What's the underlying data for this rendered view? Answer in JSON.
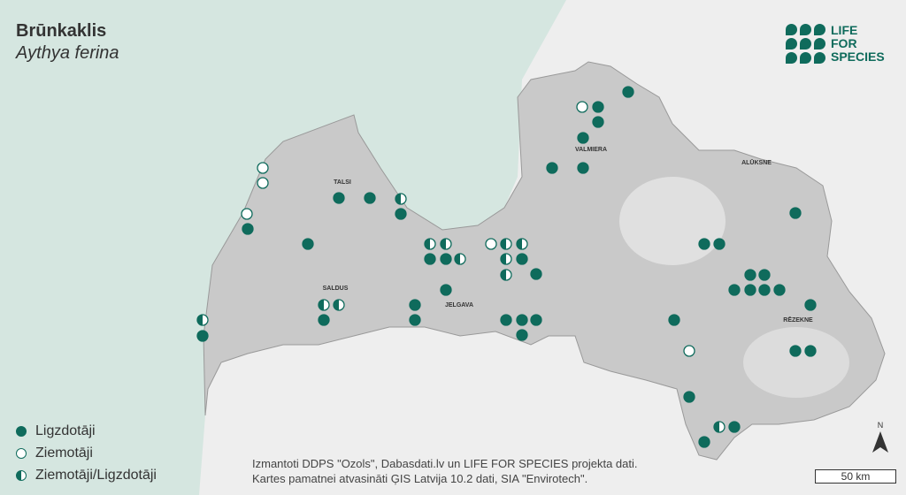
{
  "title": "Brūnkaklis",
  "subtitle": "Aythya ferina",
  "logo": {
    "lines": [
      "LIFE",
      "FOR",
      "SPECIES"
    ]
  },
  "legend": [
    {
      "label": "Ligzdotāji",
      "type": "filled"
    },
    {
      "label": "Ziemotāji",
      "type": "hollow"
    },
    {
      "label": "Ziemotāji/Ligzdotāji",
      "type": "half"
    }
  ],
  "cities": [
    "TALSI",
    "VALMIERA",
    "ALŪKSNE",
    "SALDUS",
    "JELGAVA",
    "RĒZEKNE"
  ],
  "credits": [
    "Izmantoti DDPS \"Ozols\", Dabasdati.lv un LIFE FOR SPECIES projekta dati.",
    "Kartes pamatnei atvasināti ĢIS Latvija 10.2 dati, SIA \"Envirotech\"."
  ],
  "scale_label": "50 km",
  "north_label": "N",
  "colors": {
    "accent": "#0f6b5c",
    "sea": "#d5e6e0",
    "land": "#c9c9c9",
    "other_land": "#eeeeee"
  }
}
